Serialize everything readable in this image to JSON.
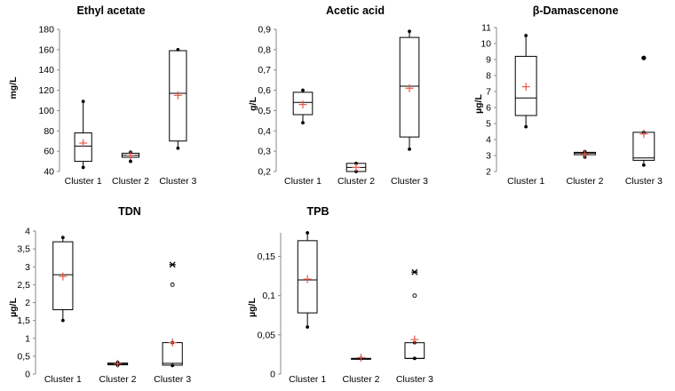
{
  "chart_data": [
    {
      "type": "box",
      "title": "Ethyl acetate",
      "ylabel": "mg/L",
      "ylim": [
        40,
        180
      ],
      "yticks": [
        "40",
        "60",
        "80",
        "100",
        "120",
        "140",
        "160",
        "180"
      ],
      "categories": [
        "Cluster 1",
        "Cluster 2",
        "Cluster 3"
      ],
      "boxes": [
        {
          "min": 44,
          "q1": 50,
          "median": 65,
          "q3": 78,
          "max": 109,
          "mean": 68,
          "outliers": []
        },
        {
          "min": 50,
          "q1": 54,
          "median": 56,
          "q3": 58,
          "max": 59,
          "mean": 56,
          "outliers": []
        },
        {
          "min": 63,
          "q1": 70,
          "median": 117,
          "q3": 159,
          "max": 160,
          "mean": 115,
          "outliers": []
        }
      ]
    },
    {
      "type": "box",
      "title": "Acetic acid",
      "ylabel": "g/L",
      "ylim": [
        0.2,
        0.9
      ],
      "yticks": [
        "0,2",
        "0,3",
        "0,4",
        "0,5",
        "0,6",
        "0,7",
        "0,8",
        "0,9"
      ],
      "categories": [
        "Cluster 1",
        "Cluster 2",
        "Cluster 3"
      ],
      "boxes": [
        {
          "min": 0.44,
          "q1": 0.48,
          "median": 0.54,
          "q3": 0.59,
          "max": 0.6,
          "mean": 0.53,
          "outliers": []
        },
        {
          "min": 0.2,
          "q1": 0.2,
          "median": 0.22,
          "q3": 0.24,
          "max": 0.24,
          "mean": 0.22,
          "outliers": []
        },
        {
          "min": 0.31,
          "q1": 0.37,
          "median": 0.62,
          "q3": 0.86,
          "max": 0.89,
          "mean": 0.61,
          "outliers": []
        }
      ]
    },
    {
      "type": "box",
      "title": "β-Damascenone",
      "ylabel": "µg/L",
      "ylim": [
        2,
        11
      ],
      "yticks": [
        "2",
        "3",
        "4",
        "5",
        "6",
        "7",
        "8",
        "9",
        "10",
        "11"
      ],
      "categories": [
        "Cluster 1",
        "Cluster 2",
        "Cluster 3"
      ],
      "boxes": [
        {
          "min": 4.8,
          "q1": 5.5,
          "median": 6.6,
          "q3": 9.2,
          "max": 10.5,
          "mean": 7.3,
          "outliers": []
        },
        {
          "min": 2.9,
          "q1": 3.05,
          "median": 3.15,
          "q3": 3.2,
          "max": 3.25,
          "mean": 3.1,
          "outliers": []
        },
        {
          "min": 2.4,
          "q1": 2.7,
          "median": 2.85,
          "q3": 4.45,
          "max": 4.45,
          "mean": 4.35,
          "outliers": [
            {
              "value": 9.1,
              "symbol": "dot"
            }
          ]
        }
      ]
    },
    {
      "type": "box",
      "title": "TDN",
      "ylabel": "µg/L",
      "ylim": [
        0,
        4
      ],
      "yticks": [
        "0",
        "0,5",
        "1",
        "1,5",
        "2",
        "2,5",
        "3",
        "3,5",
        "4"
      ],
      "categories": [
        "Cluster 1",
        "Cluster 2",
        "Cluster 3"
      ],
      "boxes": [
        {
          "min": 1.5,
          "q1": 1.8,
          "median": 2.78,
          "q3": 3.7,
          "max": 3.82,
          "mean": 2.73,
          "outliers": []
        },
        {
          "min": 0.25,
          "q1": 0.26,
          "median": 0.28,
          "q3": 0.31,
          "max": 0.33,
          "mean": 0.29,
          "outliers": []
        },
        {
          "min": 0.24,
          "q1": 0.25,
          "median": 0.3,
          "q3": 0.88,
          "max": 0.88,
          "mean": 0.88,
          "outliers": [
            {
              "value": 2.5,
              "symbol": "circle"
            },
            {
              "value": 3.06,
              "symbol": "star"
            }
          ]
        }
      ]
    },
    {
      "type": "box",
      "title": "TPB",
      "ylabel": "µg/L",
      "ylim": [
        0,
        0.18
      ],
      "yticks": [
        "0",
        "0,05",
        "0,1",
        "0,15"
      ],
      "yticks_values": [
        0,
        0.05,
        0.1,
        0.15
      ],
      "categories": [
        "Cluster 1",
        "Cluster 2",
        "Cluster 3"
      ],
      "boxes": [
        {
          "min": 0.06,
          "q1": 0.078,
          "median": 0.12,
          "q3": 0.17,
          "max": 0.18,
          "mean": 0.121,
          "outliers": []
        },
        {
          "min": 0.02,
          "q1": 0.02,
          "median": 0.02,
          "q3": 0.02,
          "max": 0.02,
          "mean": 0.021,
          "outliers": []
        },
        {
          "min": 0.02,
          "q1": 0.02,
          "median": 0.02,
          "q3": 0.04,
          "max": 0.04,
          "mean": 0.044,
          "outliers": [
            {
              "value": 0.1,
              "symbol": "circle"
            },
            {
              "value": 0.13,
              "symbol": "star"
            }
          ]
        }
      ]
    }
  ],
  "colors": {
    "box": "#000000",
    "mean_marker": "#e8584a"
  }
}
